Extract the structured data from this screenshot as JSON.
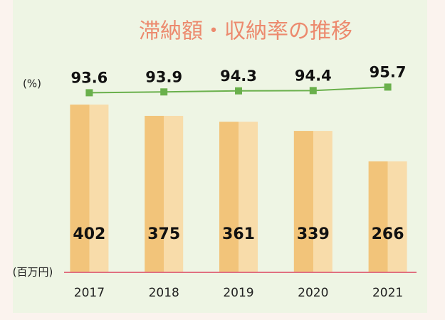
{
  "chart_data": {
    "type": "bar-line",
    "title": "滞納額・収納率の推移",
    "y_label": "(百万円)",
    "y2_label": "(%)",
    "categories": [
      "2017",
      "2018",
      "2019",
      "2020",
      "2021"
    ],
    "series": [
      {
        "type": "bar",
        "color": "#f2c47a",
        "values": [
          402,
          375,
          361,
          339,
          266
        ]
      },
      {
        "type": "line",
        "axis": "y2",
        "color": "#6ab04c",
        "values": [
          93.6,
          93.9,
          94.3,
          94.4,
          95.7
        ]
      }
    ],
    "ylim": [
      0,
      530
    ],
    "y2lim": [
      27,
      109
    ],
    "title_color": "#ec8a6e",
    "baseline_color": "#e07080"
  }
}
